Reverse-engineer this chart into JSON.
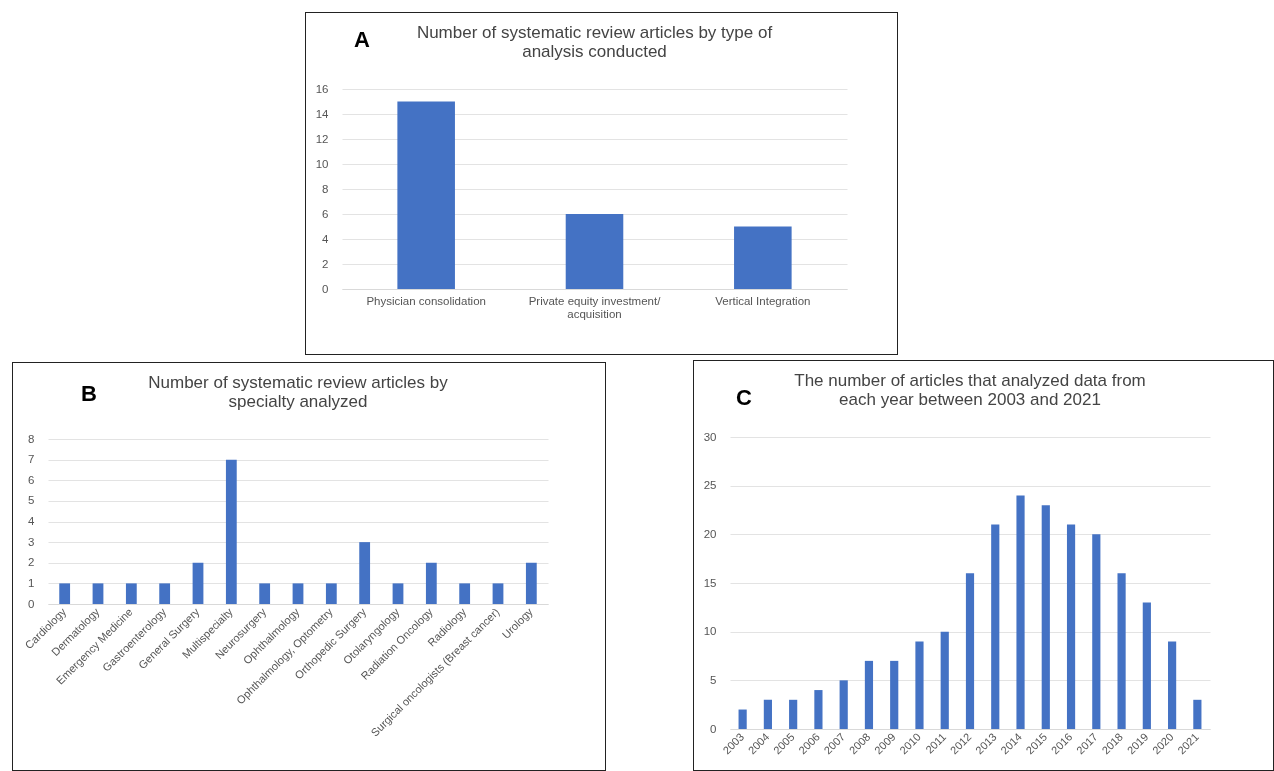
{
  "chart_data": [
    {
      "type": "bar",
      "title": "Number of systematic review articles by type of analysis conducted",
      "annotations": [
        "A"
      ],
      "categories": [
        "Physician consolidation",
        "Private equity investment/ acquisition",
        "Vertical Integration"
      ],
      "values": [
        15,
        6,
        5
      ],
      "color": "#4472c4",
      "ylim": [
        0,
        16
      ],
      "yticks": [
        0,
        2,
        4,
        6,
        8,
        10,
        12,
        14,
        16
      ],
      "grid": "y"
    },
    {
      "type": "bar",
      "title": "Number of systematic review articles by specialty analyzed",
      "annotations": [
        "B"
      ],
      "categories": [
        "Cardiology",
        "Dermatology",
        "Emergency Medicine",
        "Gastroenterology",
        "General Surgery",
        "Multispecialty",
        "Neurosurgery",
        "Ophthalmology",
        "Ophthalmology, Optometry",
        "Orthopedic Surgery",
        "Otolaryngology",
        "Radiation Oncology",
        "Radiology",
        "Surgical oncologists (Breast cancer)",
        "Urology"
      ],
      "values": [
        1,
        1,
        1,
        1,
        2,
        7,
        1,
        1,
        1,
        3,
        1,
        2,
        1,
        1,
        2
      ],
      "color": "#4472c4",
      "ylim": [
        0,
        8
      ],
      "yticks": [
        0,
        1,
        2,
        3,
        4,
        5,
        6,
        7,
        8
      ],
      "grid": "y"
    },
    {
      "type": "bar",
      "title": "The number of articles that analyzed data from each year between 2003 and 2021",
      "annotations": [
        "C"
      ],
      "categories": [
        "2003",
        "2004",
        "2005",
        "2006",
        "2007",
        "2008",
        "2009",
        "2010",
        "2011",
        "2012",
        "2013",
        "2014",
        "2015",
        "2016",
        "2017",
        "2018",
        "2019",
        "2020",
        "2021"
      ],
      "values": [
        2,
        3,
        3,
        4,
        5,
        7,
        7,
        9,
        10,
        16,
        21,
        24,
        23,
        21,
        20,
        16,
        13,
        9,
        3
      ],
      "color": "#4472c4",
      "ylim": [
        0,
        30
      ],
      "yticks": [
        0,
        5,
        10,
        15,
        20,
        25,
        30
      ],
      "grid": "y"
    }
  ]
}
